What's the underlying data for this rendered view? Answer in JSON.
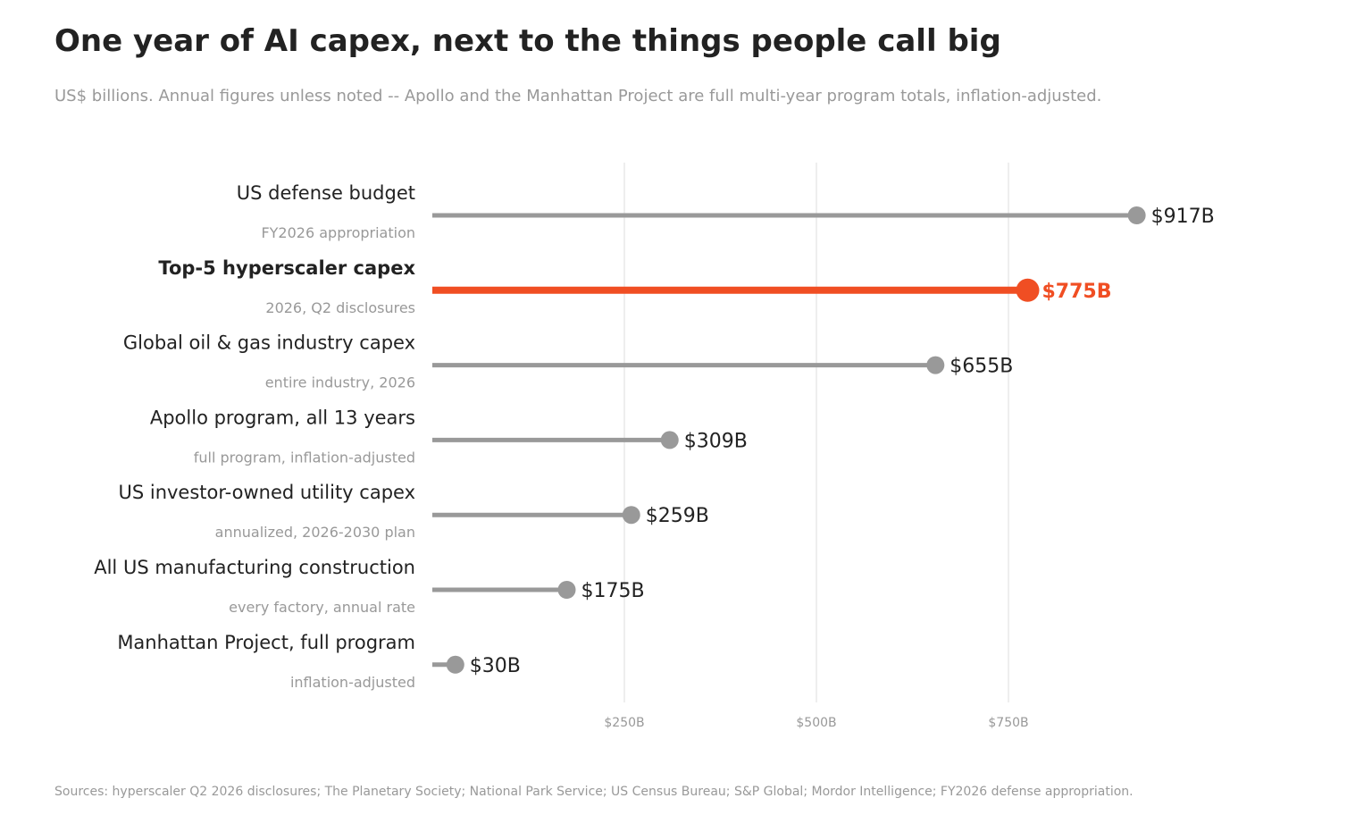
{
  "title": "One year of AI capex, next to the things people call big",
  "subtitle": "US$ billions. Annual figures unless noted -- Apollo and the Manhattan Project are full multi-year program totals, inflation-adjusted.",
  "source": "Sources: hyperscaler Q2 2026 disclosures; The Planetary Society; National Park Service; US Census Bureau; S&P Global; Mordor Intelligence; FY2026 defense appropriation.",
  "colors": {
    "highlight": "#f04e23",
    "base": "#999999",
    "grid": "#dddddd",
    "text": "#222222",
    "muted": "#999999"
  },
  "chart_data": {
    "type": "lollipop",
    "xlim": [
      0,
      1000
    ],
    "x_ticks": [
      {
        "value": 250,
        "label": "$250B"
      },
      {
        "value": 500,
        "label": "$500B"
      },
      {
        "value": 750,
        "label": "$750B"
      }
    ],
    "grid": true,
    "rows": [
      {
        "label": "US defense budget",
        "sublabel": "FY2026 appropriation",
        "value": 917,
        "value_label": "$917B",
        "highlight": false
      },
      {
        "label": "Top-5 hyperscaler capex",
        "sublabel": "2026, Q2 disclosures",
        "value": 775,
        "value_label": "$775B",
        "highlight": true
      },
      {
        "label": "Global oil & gas industry capex",
        "sublabel": "entire industry, 2026",
        "value": 655,
        "value_label": "$655B",
        "highlight": false
      },
      {
        "label": "Apollo program, all 13 years",
        "sublabel": "full program, inflation-adjusted",
        "value": 309,
        "value_label": "$309B",
        "highlight": false
      },
      {
        "label": "US investor-owned utility capex",
        "sublabel": "annualized, 2026-2030 plan",
        "value": 259,
        "value_label": "$259B",
        "highlight": false
      },
      {
        "label": "All US manufacturing construction",
        "sublabel": "every factory, annual rate",
        "value": 175,
        "value_label": "$175B",
        "highlight": false
      },
      {
        "label": "Manhattan Project, full program",
        "sublabel": "inflation-adjusted",
        "value": 30,
        "value_label": "$30B",
        "highlight": false
      }
    ]
  }
}
